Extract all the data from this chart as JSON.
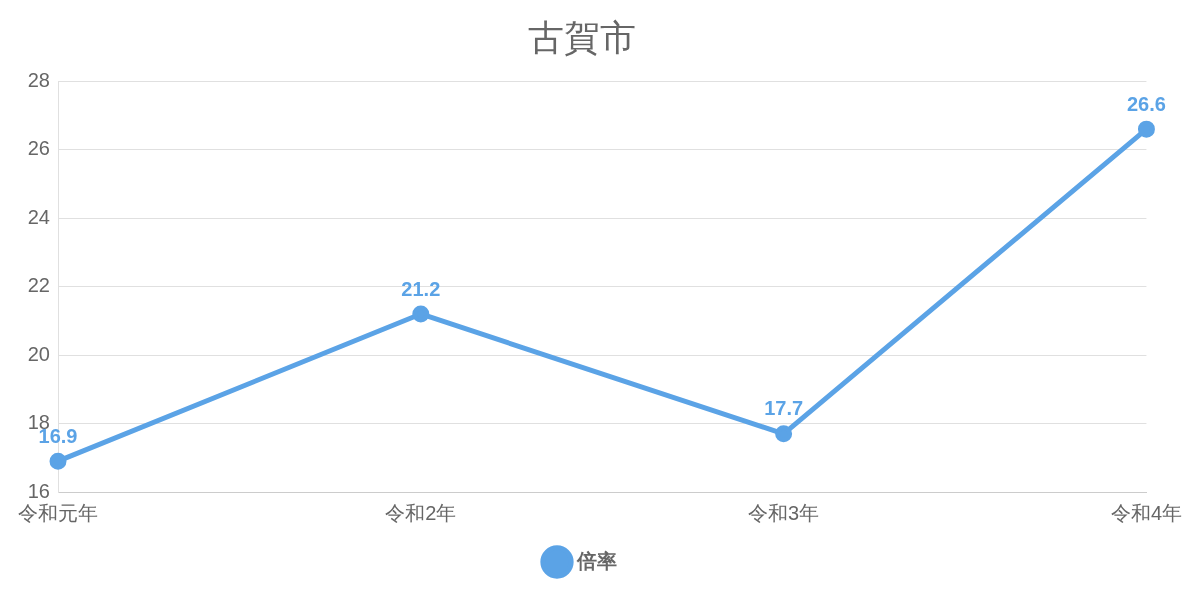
{
  "chart_data": {
    "type": "line",
    "title": "古賀市",
    "categories": [
      "令和元年",
      "令和2年",
      "令和3年",
      "令和4年"
    ],
    "series": [
      {
        "name": "倍率",
        "color": "#5ba3e6",
        "values": [
          16.9,
          21.2,
          17.7,
          26.6
        ]
      }
    ],
    "ylim": [
      16,
      28
    ],
    "yticks": [
      16,
      18,
      20,
      22,
      24,
      26,
      28
    ],
    "grid": "y",
    "legend": "bottom",
    "marker": "circle",
    "line_style": "solid",
    "data_labels": true
  }
}
